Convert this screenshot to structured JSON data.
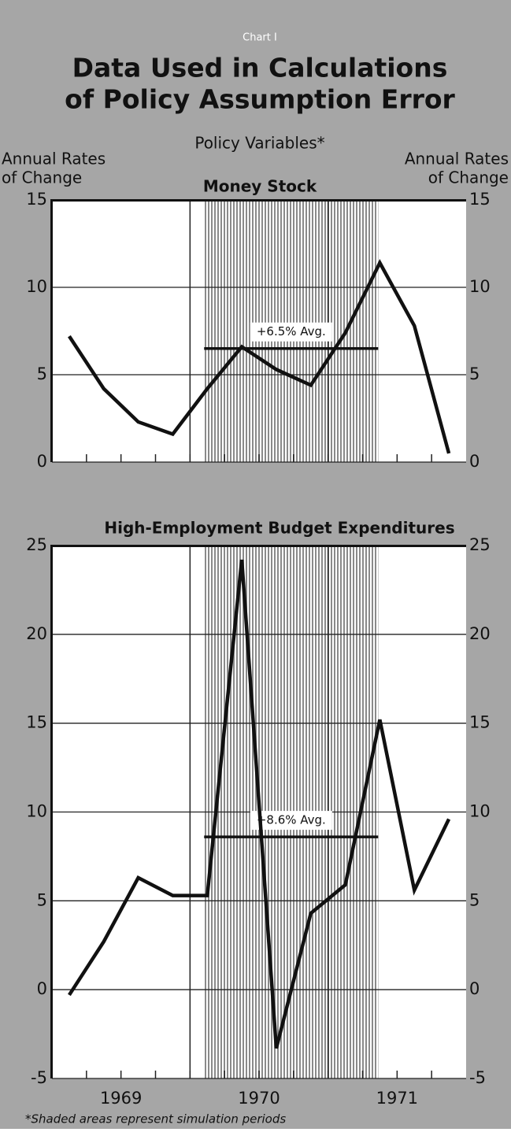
{
  "header": {
    "chart_label": "Chart I",
    "title_lines": [
      "Data Used in Calculations",
      "of Policy Assumption Error"
    ],
    "supertitle": "Policy Variables*",
    "left_axis_label": [
      "Annual Rates",
      "of Change"
    ],
    "right_axis_label": [
      "Annual Rates",
      "of Change"
    ]
  },
  "chart_data": [
    {
      "type": "line",
      "title": "Money Stock",
      "categories": [
        null,
        null,
        null,
        null,
        null,
        null,
        null,
        null,
        null,
        null,
        null,
        null
      ],
      "years": [
        "1969",
        "1970",
        "1971"
      ],
      "values": [
        7.2,
        4.2,
        2.3,
        1.6,
        4.2,
        6.6,
        5.3,
        4.4,
        7.4,
        11.4,
        7.8,
        0.5
      ],
      "color": "#111111",
      "ylim": [
        0,
        15
      ],
      "yticks": [
        0,
        5,
        10,
        15
      ],
      "grid": true,
      "shaded_range": [
        4,
        9
      ],
      "average": {
        "value": 6.5,
        "label": "+6.5% Avg."
      }
    },
    {
      "type": "line",
      "title": "High-Employment Budget Expenditures",
      "categories": [
        null,
        null,
        null,
        null,
        null,
        null,
        null,
        null,
        null,
        null,
        null,
        null
      ],
      "years": [
        "1969",
        "1970",
        "1971"
      ],
      "values": [
        -0.3,
        2.7,
        6.3,
        5.3,
        5.3,
        24.2,
        -3.3,
        4.3,
        5.9,
        15.2,
        5.6,
        9.6
      ],
      "color": "#111111",
      "ylim": [
        -5,
        25
      ],
      "yticks": [
        -5,
        0,
        5,
        10,
        15,
        20,
        25
      ],
      "grid": true,
      "shaded_range": [
        4,
        9
      ],
      "average": {
        "value": 8.6,
        "label": "+8.6% Avg."
      }
    }
  ],
  "footnote": "*Shaded areas represent simulation periods"
}
